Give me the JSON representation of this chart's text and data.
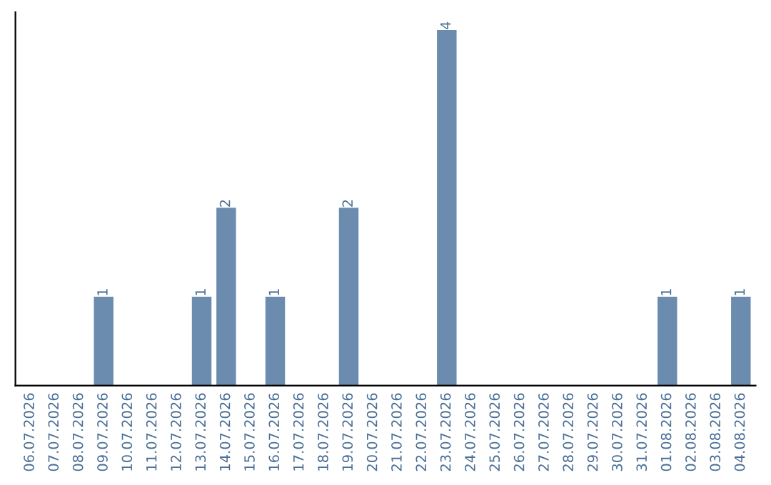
{
  "chart_data": {
    "type": "bar",
    "categories": [
      "06.07.2026",
      "07.07.2026",
      "08.07.2026",
      "09.07.2026",
      "10.07.2026",
      "11.07.2026",
      "12.07.2026",
      "13.07.2026",
      "14.07.2026",
      "15.07.2026",
      "16.07.2026",
      "17.07.2026",
      "18.07.2026",
      "19.07.2026",
      "20.07.2026",
      "21.07.2026",
      "22.07.2026",
      "23.07.2026",
      "24.07.2026",
      "25.07.2026",
      "26.07.2026",
      "27.07.2026",
      "28.07.2026",
      "29.07.2026",
      "30.07.2026",
      "31.07.2026",
      "01.08.2026",
      "02.08.2026",
      "03.08.2026",
      "04.08.2026"
    ],
    "values": [
      0,
      0,
      0,
      1,
      0,
      0,
      0,
      1,
      2,
      0,
      1,
      0,
      0,
      2,
      0,
      0,
      0,
      4,
      0,
      0,
      0,
      0,
      0,
      0,
      0,
      0,
      1,
      0,
      0,
      1
    ],
    "value_labels": [
      null,
      null,
      null,
      "1",
      null,
      null,
      null,
      "1",
      "2",
      null,
      "1",
      null,
      null,
      "2",
      null,
      null,
      null,
      "4",
      null,
      null,
      null,
      null,
      null,
      null,
      null,
      null,
      "1",
      null,
      null,
      "1"
    ],
    "color": "#6b8cae",
    "tick_labels": "x",
    "grid": false,
    "legend": false
  }
}
